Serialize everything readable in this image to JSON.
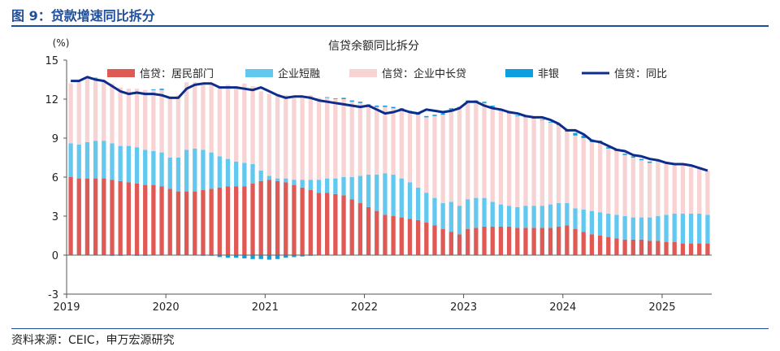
{
  "header": {
    "figure_title": "图 9：贷款增速同比拆分"
  },
  "footer": {
    "source": "资料来源：CEIC，申万宏源研究"
  },
  "colors": {
    "accent": "#1f4e9c",
    "household": "#e05a55",
    "short_term": "#63c8f0",
    "mid_long": "#f7d3d3",
    "non_bank": "#0e9fe0",
    "yoy": "#0d2d8c"
  },
  "chart_data": {
    "type": "bar",
    "stacked": true,
    "title": "信贷余额同比拆分",
    "ylabel": "(%)",
    "xlabel": "",
    "ylim": [
      -3,
      15
    ],
    "yticks": [
      -3,
      0,
      3,
      6,
      9,
      12,
      15
    ],
    "x_tick_labels": [
      "2019",
      "2020",
      "2021",
      "2022",
      "2023",
      "2024",
      "2025"
    ],
    "x_tick_index": [
      0,
      12,
      24,
      36,
      48,
      60,
      72
    ],
    "legend_position": "top",
    "grid": false,
    "series": [
      {
        "name": "信贷：居民部门",
        "kind": "bar",
        "values": [
          6.0,
          5.9,
          5.9,
          5.9,
          5.9,
          5.8,
          5.7,
          5.6,
          5.5,
          5.4,
          5.4,
          5.3,
          5.1,
          4.9,
          4.9,
          4.9,
          5.0,
          5.1,
          5.2,
          5.3,
          5.3,
          5.3,
          5.5,
          5.7,
          5.8,
          5.7,
          5.6,
          5.4,
          5.2,
          5.0,
          4.8,
          4.8,
          4.7,
          4.6,
          4.3,
          4.0,
          3.7,
          3.4,
          3.1,
          3.0,
          2.9,
          2.8,
          2.7,
          2.5,
          2.3,
          2.0,
          1.8,
          1.6,
          2.0,
          2.1,
          2.2,
          2.2,
          2.2,
          2.2,
          2.1,
          2.1,
          2.1,
          2.1,
          2.1,
          2.2,
          2.3,
          2.0,
          1.8,
          1.6,
          1.5,
          1.4,
          1.3,
          1.2,
          1.2,
          1.2,
          1.1,
          1.1,
          1.0,
          1.0,
          0.9,
          0.9,
          0.9,
          0.9
        ]
      },
      {
        "name": "企业短融",
        "kind": "bar",
        "values": [
          2.6,
          2.6,
          2.8,
          2.9,
          2.9,
          2.8,
          2.7,
          2.8,
          2.8,
          2.7,
          2.6,
          2.6,
          2.4,
          2.6,
          3.2,
          3.3,
          3.1,
          2.8,
          2.4,
          2.1,
          1.9,
          1.8,
          1.5,
          0.8,
          0.3,
          0.2,
          0.3,
          0.4,
          0.6,
          0.8,
          1.0,
          1.1,
          1.2,
          1.4,
          1.7,
          2.1,
          2.5,
          2.8,
          3.2,
          3.2,
          3.0,
          2.8,
          2.5,
          2.3,
          2.1,
          2.0,
          2.3,
          2.2,
          2.3,
          2.3,
          2.2,
          1.9,
          1.7,
          1.6,
          1.6,
          1.7,
          1.7,
          1.7,
          1.8,
          1.8,
          1.7,
          1.6,
          1.7,
          1.8,
          1.8,
          1.8,
          1.8,
          1.8,
          1.7,
          1.7,
          1.8,
          1.9,
          2.1,
          2.2,
          2.3,
          2.3,
          2.3,
          2.2
        ]
      },
      {
        "name": "信贷：企业中长贷",
        "kind": "bar",
        "values": [
          4.6,
          4.8,
          4.9,
          4.8,
          4.7,
          4.6,
          4.5,
          4.4,
          4.5,
          4.6,
          4.7,
          4.8,
          4.7,
          4.8,
          5.2,
          5.1,
          5.1,
          5.2,
          5.4,
          5.7,
          5.8,
          6.1,
          6.0,
          6.1,
          6.3,
          6.5,
          6.4,
          6.3,
          6.4,
          6.5,
          6.3,
          6.2,
          6.1,
          6.0,
          5.8,
          5.6,
          5.3,
          5.2,
          5.1,
          5.1,
          5.3,
          5.4,
          5.6,
          5.8,
          6.3,
          6.8,
          7.1,
          7.5,
          7.5,
          7.4,
          7.3,
          7.3,
          7.2,
          7.1,
          7.0,
          6.8,
          6.7,
          6.6,
          6.3,
          6.0,
          5.5,
          5.6,
          5.5,
          5.3,
          5.3,
          5.0,
          4.9,
          4.7,
          4.6,
          4.4,
          4.2,
          4.2,
          4.0,
          3.7,
          3.7,
          3.6,
          3.5,
          3.4
        ]
      },
      {
        "name": "非银",
        "kind": "bar",
        "values": [
          0.0,
          0.0,
          0.05,
          0.05,
          0.0,
          -0.05,
          -0.05,
          0.0,
          -0.05,
          -0.05,
          0.05,
          0.1,
          0.0,
          0.0,
          0.0,
          0.0,
          -0.05,
          -0.05,
          -0.15,
          -0.2,
          -0.2,
          -0.25,
          -0.3,
          -0.3,
          -0.35,
          -0.3,
          -0.2,
          -0.15,
          -0.1,
          -0.05,
          0.0,
          0.05,
          0.05,
          0.1,
          0.1,
          0.1,
          0.1,
          0.1,
          0.1,
          0.1,
          0.1,
          0.1,
          0.1,
          0.1,
          0.1,
          0.1,
          0.1,
          0.1,
          0.1,
          0.1,
          0.1,
          0.1,
          0.1,
          0.1,
          0.05,
          0.05,
          0.05,
          0.05,
          0.05,
          0.1,
          0.1,
          0.2,
          0.2,
          0.2,
          0.2,
          0.1,
          0.1,
          0.1,
          0.1,
          0.1,
          0.1,
          0.1,
          0.0,
          0.0,
          0.0,
          0.0,
          0.0,
          0.0
        ]
      },
      {
        "name": "信贷：同比",
        "kind": "line",
        "values": [
          13.4,
          13.4,
          13.7,
          13.5,
          13.4,
          13.0,
          12.6,
          12.4,
          12.5,
          12.4,
          12.4,
          12.3,
          12.1,
          12.1,
          12.8,
          13.1,
          13.2,
          13.2,
          12.9,
          12.9,
          12.9,
          12.8,
          12.7,
          12.9,
          12.6,
          12.3,
          12.1,
          12.2,
          12.2,
          12.1,
          11.9,
          11.8,
          11.7,
          11.6,
          11.5,
          11.4,
          11.5,
          11.2,
          10.9,
          11.0,
          11.2,
          11.0,
          10.9,
          11.2,
          11.1,
          11.0,
          11.1,
          11.3,
          11.8,
          11.8,
          11.5,
          11.3,
          11.2,
          11.0,
          10.9,
          10.7,
          10.6,
          10.6,
          10.4,
          10.1,
          9.6,
          9.6,
          9.3,
          8.8,
          8.7,
          8.4,
          8.1,
          8.0,
          7.7,
          7.6,
          7.4,
          7.3,
          7.1,
          7.0,
          7.0,
          6.9,
          6.7,
          6.5
        ]
      }
    ]
  }
}
